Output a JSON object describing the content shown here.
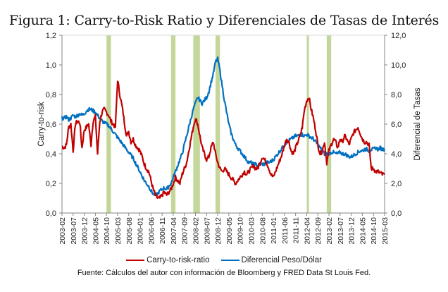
{
  "title": "Figura 1: Carry-to-Risk Ratio y Diferenciales de Tasas de Interés",
  "source_note": "Fuente:  Cálculos del autor con información de Bloomberg y FRED Data St Louis Fed.",
  "colors": {
    "carry": "#c00000",
    "diferencial": "#0070c0",
    "shading": "#c4d79b",
    "axis": "#868686",
    "grid": "#d9d9d9"
  },
  "chart_data": {
    "type": "line",
    "title": "Figura 1: Carry-to-Risk Ratio y Diferenciales de Tasas de Interés",
    "xlabel": "",
    "ylabel": "Carry-to-risk",
    "y2label": "Diferencial de Tasas",
    "ylim": [
      0,
      1.2
    ],
    "y2lim": [
      0,
      12
    ],
    "yticks": [
      "0,0",
      "0,2",
      "0,4",
      "0,6",
      "0,8",
      "1,0",
      "1,2"
    ],
    "y2ticks": [
      "0,0",
      "2,0",
      "4,0",
      "6,0",
      "8,0",
      "10,0",
      "12,0"
    ],
    "xticks": [
      "2003-02",
      "2003-07",
      "2003-12",
      "2004-05",
      "2004-10",
      "2005-03",
      "2005-08",
      "2006-01",
      "2006-06",
      "2006-11",
      "2007-04",
      "2007-09",
      "2008-02",
      "2008-07",
      "2008-12",
      "2009-05",
      "2009-10",
      "2010-03",
      "2010-08",
      "2011-01",
      "2011-06",
      "2011-11",
      "2012-04",
      "2012-09",
      "2013-02",
      "2013-07",
      "2013-12",
      "2014-05",
      "2014-10",
      "2015-03"
    ],
    "x_start": "2003-02",
    "x_end": "2015-03",
    "legend_position": "bottom",
    "grid": false,
    "shaded_periods": [
      {
        "start": "2004-10",
        "end": "2004-11"
      },
      {
        "start": "2007-03",
        "end": "2007-04"
      },
      {
        "start": "2008-01",
        "end": "2008-03"
      },
      {
        "start": "2008-11",
        "end": "2008-12"
      },
      {
        "start": "2012-04",
        "end": "2012-04"
      },
      {
        "start": "2013-01",
        "end": "2013-02"
      }
    ],
    "series": [
      {
        "name": "Carry-to-risk-ratio",
        "axis": "left",
        "monthly_start": "2003-02",
        "values": [
          0.45,
          0.44,
          0.46,
          0.58,
          0.6,
          0.42,
          0.6,
          0.62,
          0.61,
          0.44,
          0.56,
          0.58,
          0.6,
          0.46,
          0.62,
          0.65,
          0.4,
          0.62,
          0.68,
          0.7,
          0.68,
          0.66,
          0.62,
          0.6,
          0.58,
          0.9,
          0.8,
          0.72,
          0.62,
          0.52,
          0.55,
          0.48,
          0.5,
          0.46,
          0.44,
          0.42,
          0.38,
          0.33,
          0.3,
          0.28,
          0.22,
          0.16,
          0.12,
          0.1,
          0.1,
          0.12,
          0.14,
          0.12,
          0.14,
          0.16,
          0.2,
          0.24,
          0.22,
          0.2,
          0.26,
          0.3,
          0.34,
          0.42,
          0.5,
          0.58,
          0.64,
          0.6,
          0.52,
          0.44,
          0.4,
          0.36,
          0.38,
          0.44,
          0.48,
          0.4,
          0.34,
          0.3,
          0.28,
          0.3,
          0.28,
          0.26,
          0.24,
          0.22,
          0.2,
          0.22,
          0.24,
          0.26,
          0.28,
          0.26,
          0.28,
          0.3,
          0.32,
          0.3,
          0.3,
          0.34,
          0.38,
          0.36,
          0.34,
          0.3,
          0.26,
          0.24,
          0.28,
          0.32,
          0.36,
          0.4,
          0.46,
          0.5,
          0.48,
          0.42,
          0.4,
          0.44,
          0.48,
          0.52,
          0.58,
          0.7,
          0.76,
          0.78,
          0.7,
          0.64,
          0.56,
          0.46,
          0.4,
          0.42,
          0.48,
          0.34,
          0.42,
          0.46,
          0.5,
          0.48,
          0.44,
          0.5,
          0.48,
          0.52,
          0.5,
          0.46,
          0.5,
          0.54,
          0.56,
          0.58,
          0.54,
          0.5,
          0.48,
          0.48,
          0.46,
          0.3,
          0.3,
          0.28,
          0.28,
          0.27,
          0.26,
          0.26
        ]
      },
      {
        "name": "Diferencial Peso/Dólar",
        "axis": "right",
        "monthly_start": "2003-02",
        "values": [
          6.4,
          6.4,
          6.5,
          6.3,
          6.4,
          6.6,
          6.5,
          6.6,
          6.7,
          6.6,
          6.7,
          6.9,
          7.0,
          7.0,
          6.9,
          6.8,
          6.6,
          6.4,
          6.2,
          6.1,
          6.0,
          5.9,
          5.7,
          5.5,
          5.3,
          5.1,
          4.9,
          4.7,
          4.5,
          4.3,
          4.1,
          3.9,
          3.7,
          3.4,
          3.1,
          2.8,
          2.5,
          2.2,
          2.0,
          1.8,
          1.5,
          1.3,
          1.2,
          1.3,
          1.5,
          1.6,
          1.7,
          1.6,
          1.8,
          2.0,
          2.4,
          2.8,
          3.2,
          3.6,
          4.0,
          4.6,
          5.2,
          5.8,
          6.4,
          7.0,
          7.4,
          7.8,
          7.6,
          7.4,
          7.6,
          7.8,
          8.2,
          8.8,
          9.4,
          10.2,
          10.4,
          9.6,
          8.6,
          7.6,
          6.8,
          6.0,
          5.4,
          5.0,
          4.6,
          4.4,
          4.2,
          4.0,
          3.8,
          3.6,
          3.4,
          3.4,
          3.3,
          3.3,
          3.2,
          3.3,
          3.3,
          3.3,
          3.4,
          3.4,
          3.5,
          3.6,
          3.8,
          4.0,
          4.2,
          4.4,
          4.6,
          4.8,
          4.9,
          5.0,
          5.1,
          5.2,
          5.2,
          5.3,
          5.3,
          5.2,
          5.3,
          5.2,
          5.1,
          5.0,
          4.8,
          4.6,
          4.4,
          4.2,
          4.0,
          4.0,
          4.0,
          4.1,
          4.1,
          4.0,
          4.0,
          4.1,
          4.0,
          4.0,
          3.9,
          3.8,
          3.8,
          3.9,
          4.0,
          4.1,
          4.2,
          4.2,
          4.3,
          4.3,
          4.2,
          4.3,
          4.3,
          4.4,
          4.3,
          4.4,
          4.3,
          4.3
        ]
      }
    ]
  }
}
